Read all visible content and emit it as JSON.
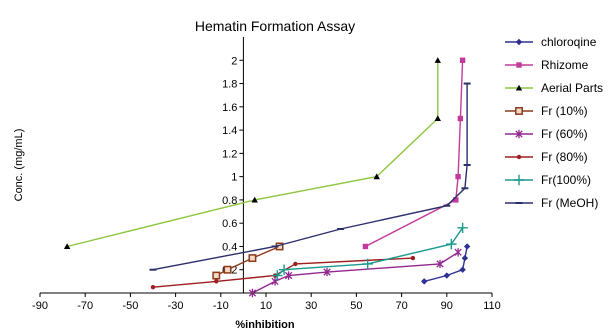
{
  "chart_data": {
    "type": "scatter",
    "title": "Hematin Formation Assay",
    "xlabel": "%inhibition",
    "ylabel": "Conc. (mg/mL)",
    "xlim": [
      -90,
      110
    ],
    "ylim": [
      0,
      2.2
    ],
    "xticks": [
      -90,
      -70,
      -50,
      -30,
      -10,
      10,
      30,
      50,
      70,
      90,
      110
    ],
    "yticks": [
      0.2,
      0.4,
      0.6,
      0.8,
      1,
      1.2,
      1.4,
      1.6,
      1.8,
      2
    ],
    "legend_position": "right",
    "series": [
      {
        "name": "chloroqine",
        "color": "#2e3192",
        "marker": "diamond",
        "points": [
          [
            80,
            0.1
          ],
          [
            90,
            0.15
          ],
          [
            97,
            0.2
          ],
          [
            98,
            0.3
          ],
          [
            99,
            0.4
          ]
        ]
      },
      {
        "name": "Rhizome",
        "color": "#c23b9b",
        "marker": "square",
        "points": [
          [
            54,
            0.4
          ],
          [
            94,
            0.8
          ],
          [
            95,
            1.0
          ],
          [
            96,
            1.5
          ],
          [
            97,
            2.0
          ]
        ]
      },
      {
        "name": "Aerial Parts",
        "color": "#8dc63f",
        "marker": "triangle",
        "points": [
          [
            -78,
            0.4
          ],
          [
            5,
            0.8
          ],
          [
            59,
            1.0
          ],
          [
            86,
            1.5
          ],
          [
            86,
            2.0
          ]
        ]
      },
      {
        "name": "Fr (10%)",
        "color": "#8b3a1a",
        "marker": "square-open",
        "points": [
          [
            -12,
            0.15
          ],
          [
            -7,
            0.2
          ],
          [
            4,
            0.3
          ],
          [
            16,
            0.4
          ]
        ]
      },
      {
        "name": "Fr (60%)",
        "color": "#92278f",
        "marker": "star",
        "points": [
          [
            4,
            0.0
          ],
          [
            14,
            0.1
          ],
          [
            20,
            0.15
          ],
          [
            37,
            0.18
          ],
          [
            87,
            0.25
          ],
          [
            95,
            0.35
          ]
        ]
      },
      {
        "name": "Fr (80%)",
        "color": "#9e1f1f",
        "marker": "circle",
        "points": [
          [
            -40,
            0.05
          ],
          [
            -12,
            0.1
          ],
          [
            14,
            0.15
          ],
          [
            23,
            0.25
          ],
          [
            75,
            0.3
          ]
        ]
      },
      {
        "name": "Fr(100%)",
        "color": "#1b9a8f",
        "marker": "plus",
        "points": [
          [
            15,
            0.15
          ],
          [
            18,
            0.2
          ],
          [
            55,
            0.25
          ],
          [
            92,
            0.42
          ],
          [
            97,
            0.56
          ]
        ]
      },
      {
        "name": "Fr (MeOH)",
        "color": "#2b2f6b",
        "marker": "dash",
        "points": [
          [
            -40,
            0.2
          ],
          [
            14,
            0.4
          ],
          [
            43,
            0.55
          ],
          [
            90,
            0.75
          ],
          [
            98,
            0.9
          ],
          [
            99,
            1.1
          ],
          [
            99,
            1.8
          ]
        ]
      }
    ]
  }
}
